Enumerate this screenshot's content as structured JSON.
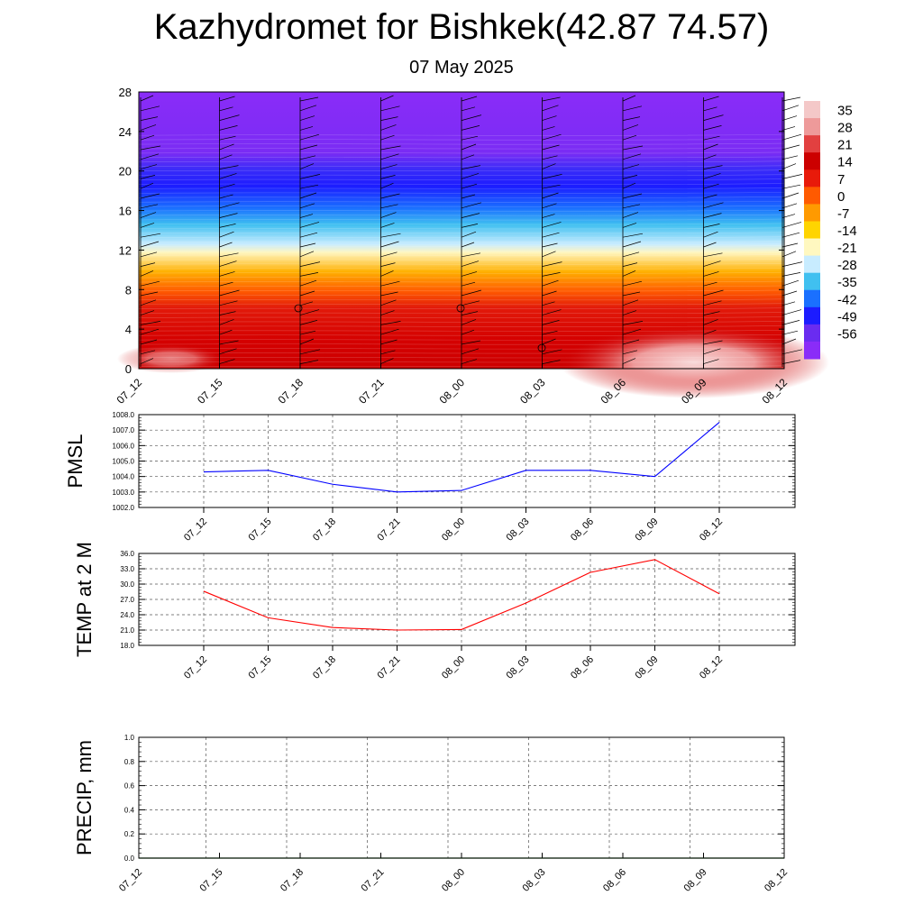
{
  "title": "Kazhydromet for Bishkek(42.87 74.57)",
  "subtitle": "07 May 2025",
  "colors": {
    "pmsl_line": "#0000ff",
    "temp_line": "#ff0000",
    "precip_line": "#006400",
    "grid": "#555555",
    "wind_barb": "#000000"
  },
  "chart_data": [
    {
      "id": "cross-section",
      "type": "heatmap",
      "description": "filled temperature contours with wind barbs",
      "x_tick_labels": [
        "07_12",
        "07_15",
        "07_18",
        "07_21",
        "08_00",
        "08_03",
        "08_06",
        "08_09",
        "08_12"
      ],
      "y_tick_labels": [
        "0",
        "4",
        "8",
        "12",
        "16",
        "20",
        "24",
        "28"
      ],
      "ylim": [
        0,
        28
      ],
      "colorbar_labels": [
        "35",
        "28",
        "21",
        "14",
        "7",
        "0",
        "-7",
        "-14",
        "-21",
        "-28",
        "-35",
        "-42",
        "-49",
        "-56"
      ],
      "colorbar_colors": [
        "#f4c8c8",
        "#ee9a9a",
        "#e24040",
        "#cc0000",
        "#e81a0a",
        "#ff5a00",
        "#ff9a00",
        "#ffd400",
        "#fff8c0",
        "#c8ecff",
        "#40c0f0",
        "#1a70ff",
        "#1c1cff",
        "#6a2cf0",
        "#8a2cf8"
      ],
      "layers": [
        {
          "y": [
            0,
            3.5
          ],
          "value": 25
        },
        {
          "y": [
            3.5,
            9
          ],
          "value": 17
        },
        {
          "y": [
            9,
            12.5
          ],
          "value": 5
        },
        {
          "y": [
            12.5,
            14
          ],
          "value": -8
        },
        {
          "y": [
            14,
            16.5
          ],
          "value": -25
        },
        {
          "y": [
            16.5,
            21
          ],
          "value": -45
        },
        {
          "y": [
            21,
            28
          ],
          "value": -56
        }
      ]
    },
    {
      "id": "pmsl",
      "type": "line",
      "ylabel": "PMSL",
      "x": [
        "07_12",
        "07_15",
        "07_18",
        "07_21",
        "08_00",
        "08_03",
        "08_06",
        "08_09",
        "08_12"
      ],
      "series": [
        {
          "values": [
            1004.3,
            1004.4,
            1003.5,
            1003.0,
            1003.1,
            1004.4,
            1004.4,
            1004.0,
            1007.5
          ]
        }
      ],
      "ylim": [
        1002.0,
        1008.0
      ],
      "y_ticks": [
        "1002.0",
        "1003.0",
        "1004.0",
        "1005.0",
        "1006.0",
        "1007.0",
        "1008.0"
      ],
      "grid": true
    },
    {
      "id": "temp",
      "type": "line",
      "ylabel": "TEMP at 2 M",
      "x": [
        "07_12",
        "07_15",
        "07_18",
        "07_21",
        "08_00",
        "08_03",
        "08_06",
        "08_09",
        "08_12"
      ],
      "series": [
        {
          "values": [
            28.6,
            23.4,
            21.5,
            21.0,
            21.1,
            26.3,
            32.3,
            34.8,
            28.1
          ]
        }
      ],
      "ylim": [
        18.0,
        36.0
      ],
      "y_ticks": [
        "18.0",
        "21.0",
        "24.0",
        "27.0",
        "30.0",
        "33.0",
        "36.0"
      ],
      "grid": true
    },
    {
      "id": "precip",
      "type": "line",
      "ylabel": "PRECIP, mm",
      "x": [
        "07_12",
        "07_15",
        "07_18",
        "07_21",
        "08_00",
        "08_03",
        "08_06",
        "08_09",
        "08_12"
      ],
      "series": [
        {
          "values": [
            0,
            0,
            0,
            0,
            0,
            0,
            0,
            0,
            0
          ]
        }
      ],
      "ylim": [
        0.0,
        1.0
      ],
      "y_ticks": [
        "0.0",
        "0.2",
        "0.4",
        "0.6",
        "0.8",
        "1.0"
      ],
      "grid": true
    }
  ]
}
